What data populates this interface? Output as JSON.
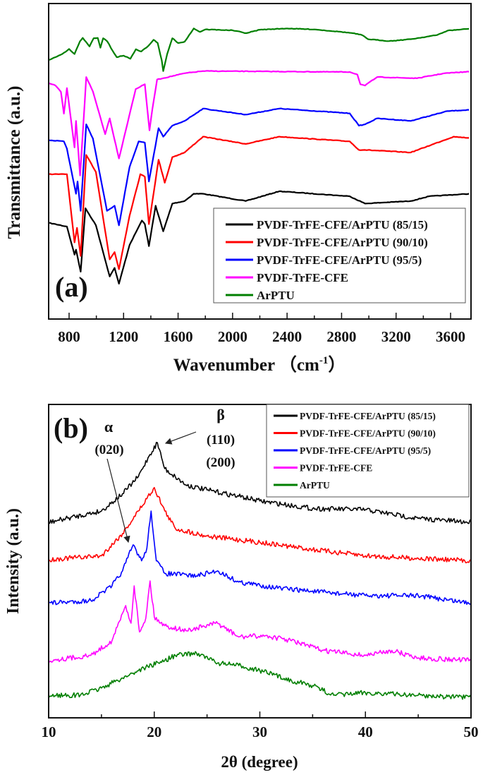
{
  "chart_data": [
    {
      "type": "line",
      "panel_label": "(a)",
      "xlabel": "Wavenumber （cm",
      "xlabel_sup": "-1",
      "xlabel_end": "）",
      "ylabel": "Transmittance (a.u.)",
      "xlim": [
        650,
        3750
      ],
      "ylim": [
        0,
        100
      ],
      "xticks": [
        800,
        1200,
        1600,
        2000,
        2400,
        2800,
        3200,
        3600
      ],
      "tick_labels": [
        "800",
        "1200",
        "1600",
        "2000",
        "2400",
        "2800",
        "3200",
        "3600"
      ],
      "y_ticks_labeled": false,
      "grid": false,
      "legend_placement": "bottom-right",
      "series": [
        {
          "name": "PVDF-TrFE-CFE/ArPTU (85/15)",
          "color": "#000000",
          "points": [
            [
              650,
              30.5
            ],
            [
              784,
              29.3
            ],
            [
              840,
              20.4
            ],
            [
              851,
              22.0
            ],
            [
              885,
              15.0
            ],
            [
              920,
              35.1
            ],
            [
              997,
              29.7
            ],
            [
              1098,
              13.5
            ],
            [
              1134,
              16.2
            ],
            [
              1166,
              11.2
            ],
            [
              1244,
              23.5
            ],
            [
              1334,
              31.2
            ],
            [
              1356,
              30.1
            ],
            [
              1386,
              23.1
            ],
            [
              1435,
              35.9
            ],
            [
              1491,
              27.8
            ],
            [
              1558,
              36.6
            ],
            [
              1648,
              37.4
            ],
            [
              1715,
              39.7
            ],
            [
              1783,
              39.7
            ],
            [
              2097,
              37.4
            ],
            [
              2343,
              40.5
            ],
            [
              2860,
              38.9
            ],
            [
              2972,
              36.6
            ],
            [
              3308,
              37.4
            ],
            [
              3442,
              38.9
            ],
            [
              3735,
              39.7
            ]
          ]
        },
        {
          "name": "PVDF-TrFE-CFE/ArPTU (90/10)",
          "color": "#ff0000",
          "points": [
            [
              650,
              45.9
            ],
            [
              784,
              45.9
            ],
            [
              840,
              24.3
            ],
            [
              858,
              28.9
            ],
            [
              885,
              20.0
            ],
            [
              926,
              52.0
            ],
            [
              997,
              46.6
            ],
            [
              1098,
              18.9
            ],
            [
              1134,
              21.2
            ],
            [
              1166,
              15.8
            ],
            [
              1244,
              32.8
            ],
            [
              1323,
              45.9
            ],
            [
              1356,
              45.1
            ],
            [
              1386,
              30.1
            ],
            [
              1457,
              50.5
            ],
            [
              1502,
              43.2
            ],
            [
              1558,
              51.3
            ],
            [
              1648,
              52.8
            ],
            [
              1783,
              57.8
            ],
            [
              2097,
              55.5
            ],
            [
              2343,
              57.8
            ],
            [
              2860,
              56.3
            ],
            [
              2927,
              53.6
            ],
            [
              2972,
              53.6
            ],
            [
              3308,
              52.8
            ],
            [
              3622,
              57.8
            ],
            [
              3735,
              57.4
            ]
          ]
        },
        {
          "name": "PVDF-TrFE-CFE/ArPTU (95/5)",
          "color": "#0000ff",
          "points": [
            [
              650,
              56.7
            ],
            [
              762,
              56.3
            ],
            [
              784,
              54.0
            ],
            [
              851,
              39.7
            ],
            [
              862,
              43.6
            ],
            [
              885,
              34.3
            ],
            [
              926,
              61.7
            ],
            [
              975,
              57.2
            ],
            [
              1078,
              34.3
            ],
            [
              1134,
              35.9
            ],
            [
              1166,
              29.7
            ],
            [
              1244,
              48.2
            ],
            [
              1311,
              56.3
            ],
            [
              1356,
              55.9
            ],
            [
              1386,
              43.6
            ],
            [
              1457,
              60.5
            ],
            [
              1491,
              57.8
            ],
            [
              1558,
              61.3
            ],
            [
              1648,
              62.8
            ],
            [
              1783,
              66.7
            ],
            [
              2097,
              64.8
            ],
            [
              2343,
              66.7
            ],
            [
              2860,
              65.2
            ],
            [
              2927,
              61.3
            ],
            [
              2972,
              61.7
            ],
            [
              3061,
              63.6
            ],
            [
              3308,
              62.8
            ],
            [
              3577,
              65.9
            ],
            [
              3735,
              66.3
            ]
          ]
        },
        {
          "name": "PVDF-TrFE-CFE",
          "color": "#ff00ff",
          "points": [
            [
              650,
              74.8
            ],
            [
              700,
              74.0
            ],
            [
              740,
              72
            ],
            [
              762,
              65.1
            ],
            [
              784,
              73.2
            ],
            [
              840,
              54.4
            ],
            [
              851,
              62.8
            ],
            [
              881,
              45.5
            ],
            [
              926,
              76.7
            ],
            [
              975,
              72.1
            ],
            [
              1065,
              58.6
            ],
            [
              1098,
              63.6
            ],
            [
              1166,
              50.9
            ],
            [
              1289,
              72.9
            ],
            [
              1356,
              74.4
            ],
            [
              1390,
              59.8
            ],
            [
              1412,
              66.7
            ],
            [
              1446,
              75.9
            ],
            [
              1648,
              77.9
            ],
            [
              1783,
              78.6
            ],
            [
              2860,
              78.3
            ],
            [
              2916,
              77.5
            ],
            [
              2938,
              74.4
            ],
            [
              2972,
              74.0
            ],
            [
              3061,
              76.7
            ],
            [
              3353,
              76.3
            ],
            [
              3555,
              77.9
            ],
            [
              3735,
              78.4
            ]
          ]
        },
        {
          "name": "ArPTU",
          "color": "#007f00",
          "points": [
            [
              650,
              82.1
            ],
            [
              700,
              83
            ],
            [
              750,
              84
            ],
            [
              800,
              85.6
            ],
            [
              840,
              84.0
            ],
            [
              880,
              88
            ],
            [
              900,
              89.1
            ],
            [
              950,
              86.4
            ],
            [
              980,
              89
            ],
            [
              1010,
              89.1
            ],
            [
              1030,
              86
            ],
            [
              1050,
              89
            ],
            [
              1080,
              88
            ],
            [
              1120,
              85
            ],
            [
              1150,
              83
            ],
            [
              1200,
              83.5
            ],
            [
              1250,
              82.5
            ],
            [
              1290,
              85.5
            ],
            [
              1330,
              84.8
            ],
            [
              1380,
              86.5
            ],
            [
              1420,
              88.5
            ],
            [
              1450,
              87.5
            ],
            [
              1480,
              82
            ],
            [
              1491,
              78.6
            ],
            [
              1520,
              84
            ],
            [
              1558,
              89
            ],
            [
              1600,
              87.5
            ],
            [
              1648,
              87.9
            ],
            [
              1715,
              92.1
            ],
            [
              1760,
              91
            ],
            [
              1800,
              91.8
            ],
            [
              2000,
              91.5
            ],
            [
              2100,
              90.6
            ],
            [
              2200,
              91.7
            ],
            [
              2400,
              92.1
            ],
            [
              2600,
              91.8
            ],
            [
              2800,
              91
            ],
            [
              2882,
              90.6
            ],
            [
              2950,
              90
            ],
            [
              2994,
              88.7
            ],
            [
              3150,
              88.1
            ],
            [
              3308,
              88.7
            ],
            [
              3500,
              90
            ],
            [
              3577,
              91.4
            ],
            [
              3735,
              92.0
            ]
          ]
        }
      ]
    },
    {
      "type": "line",
      "panel_label": "(b)",
      "xlabel": "2θ (degree)",
      "ylabel": "Intensity (a.u.)",
      "xlim": [
        10,
        50
      ],
      "ylim": [
        0,
        100
      ],
      "xticks": [
        10,
        20,
        30,
        40,
        50
      ],
      "tick_labels": [
        "10",
        "20",
        "30",
        "40",
        "50"
      ],
      "y_ticks_labeled": false,
      "grid": false,
      "legend_placement": "top-right",
      "annotations": {
        "alpha": "α",
        "alpha_plane": "(020)",
        "beta": "β",
        "beta_plane_1": "(110)",
        "beta_plane_2": "(200)"
      },
      "series": [
        {
          "name": "PVDF-TrFE-CFE/ArPTU (85/15)",
          "color": "#000000",
          "points": [
            [
              10,
              62.4
            ],
            [
              15,
              66
            ],
            [
              17,
              71.5
            ],
            [
              18.5,
              77
            ],
            [
              19.5,
              83.5
            ],
            [
              20.3,
              87.8
            ],
            [
              21,
              79.5
            ],
            [
              23,
              74.3
            ],
            [
              25,
              72.7
            ],
            [
              28,
              70.7
            ],
            [
              30,
              69.2
            ],
            [
              35,
              66.8
            ],
            [
              40,
              66.4
            ],
            [
              45,
              63.6
            ],
            [
              50,
              62.4
            ]
          ]
        },
        {
          "name": "PVDF-TrFE-CFE/ArPTU (90/10)",
          "color": "#ff0000",
          "points": [
            [
              10,
              50.5
            ],
            [
              15,
              51.7
            ],
            [
              17,
              58.8
            ],
            [
              18.5,
              66
            ],
            [
              20,
              73.5
            ],
            [
              21,
              66
            ],
            [
              22,
              60.4
            ],
            [
              25,
              58
            ],
            [
              30,
              56
            ],
            [
              35,
              53.7
            ],
            [
              40,
              51.7
            ],
            [
              45,
              50.9
            ],
            [
              50,
              50.1
            ]
          ]
        },
        {
          "name": "PVDF-TrFE-CFE/ArPTU (95/5)",
          "color": "#0000ff",
          "points": [
            [
              10,
              36.6
            ],
            [
              14,
              37.4
            ],
            [
              16,
              42.1
            ],
            [
              17,
              46.9
            ],
            [
              18,
              55.2
            ],
            [
              18.8,
              50.1
            ],
            [
              19.3,
              54.1
            ],
            [
              19.7,
              66
            ],
            [
              20.2,
              50.1
            ],
            [
              21,
              46.1
            ],
            [
              24,
              45.3
            ],
            [
              26,
              46.9
            ],
            [
              28,
              43.3
            ],
            [
              32,
              41.3
            ],
            [
              36,
              40.1
            ],
            [
              40,
              39
            ],
            [
              45,
              39
            ],
            [
              50,
              36.6
            ]
          ]
        },
        {
          "name": "PVDF-TrFE-CFE",
          "color": "#ff00ff",
          "points": [
            [
              10,
              18.3
            ],
            [
              14,
              19.9
            ],
            [
              16,
              24.6
            ],
            [
              17.3,
              35.8
            ],
            [
              17.8,
              30.2
            ],
            [
              18.1,
              42.1
            ],
            [
              18.6,
              27.4
            ],
            [
              19.2,
              31.8
            ],
            [
              19.6,
              43.7
            ],
            [
              20,
              32.2
            ],
            [
              21,
              29.4
            ],
            [
              23,
              27.8
            ],
            [
              26,
              30.2
            ],
            [
              28,
              25.8
            ],
            [
              30.5,
              26.2
            ],
            [
              33,
              24.6
            ],
            [
              36,
              21.5
            ],
            [
              40,
              19.9
            ],
            [
              42.5,
              21.5
            ],
            [
              45,
              19.1
            ],
            [
              50,
              18.3
            ]
          ]
        },
        {
          "name": "ArPTU",
          "color": "#007f00",
          "points": [
            [
              10,
              7.2
            ],
            [
              13,
              7.2
            ],
            [
              15,
              9.5
            ],
            [
              17,
              12.7
            ],
            [
              19,
              15.9
            ],
            [
              21,
              18.3
            ],
            [
              22,
              19.9
            ],
            [
              24,
              20.7
            ],
            [
              26,
              17.5
            ],
            [
              28,
              16.7
            ],
            [
              30,
              15.1
            ],
            [
              33,
              11.9
            ],
            [
              35,
              10.3
            ],
            [
              37,
              7.2
            ],
            [
              40,
              8.0
            ],
            [
              45,
              7.2
            ],
            [
              50,
              6.4
            ]
          ]
        }
      ]
    }
  ]
}
